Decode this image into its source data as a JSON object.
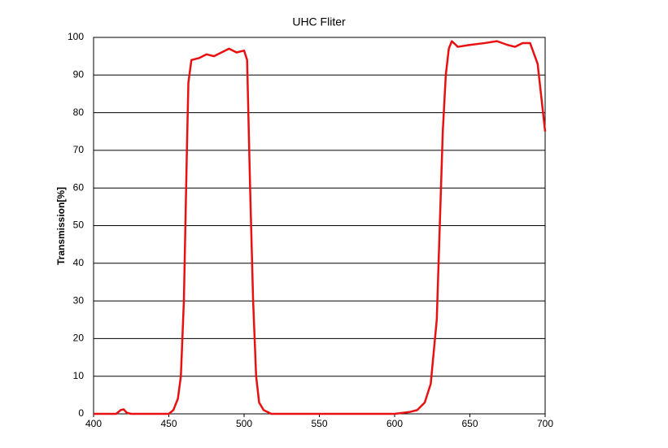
{
  "chart_data": {
    "type": "line",
    "title": "UHC Fliter",
    "y_label": "Transmission[%]",
    "x": [
      400,
      410,
      415,
      418,
      420,
      422,
      425,
      440,
      450,
      453,
      456,
      458,
      460,
      462,
      463,
      465,
      470,
      475,
      480,
      485,
      490,
      495,
      500,
      502,
      504,
      506,
      508,
      510,
      513,
      518,
      550,
      600,
      610,
      615,
      620,
      624,
      628,
      630,
      632,
      634,
      636,
      638,
      642,
      650,
      660,
      668,
      675,
      680,
      685,
      690,
      695,
      700
    ],
    "series": [
      {
        "name": "UHC",
        "color": "#e81010",
        "values": [
          0,
          0,
          0,
          1,
          1.2,
          0.3,
          0,
          0,
          0,
          1,
          4,
          10,
          30,
          70,
          88,
          94,
          94.5,
          95.5,
          95,
          96,
          97,
          96,
          96.5,
          94,
          60,
          30,
          10,
          3,
          1,
          0,
          0,
          0,
          0.5,
          1,
          3,
          8,
          25,
          50,
          75,
          90,
          97,
          99,
          97.5,
          98,
          98.5,
          99,
          98,
          97.5,
          98.5,
          98.5,
          93,
          75
        ]
      }
    ],
    "xlim": [
      400,
      700
    ],
    "ylim": [
      0,
      100
    ],
    "xticks": [
      400,
      450,
      500,
      550,
      600,
      650,
      700
    ],
    "yticks": [
      0,
      10,
      20,
      30,
      40,
      50,
      60,
      70,
      80,
      90,
      100
    ],
    "grid": true
  }
}
